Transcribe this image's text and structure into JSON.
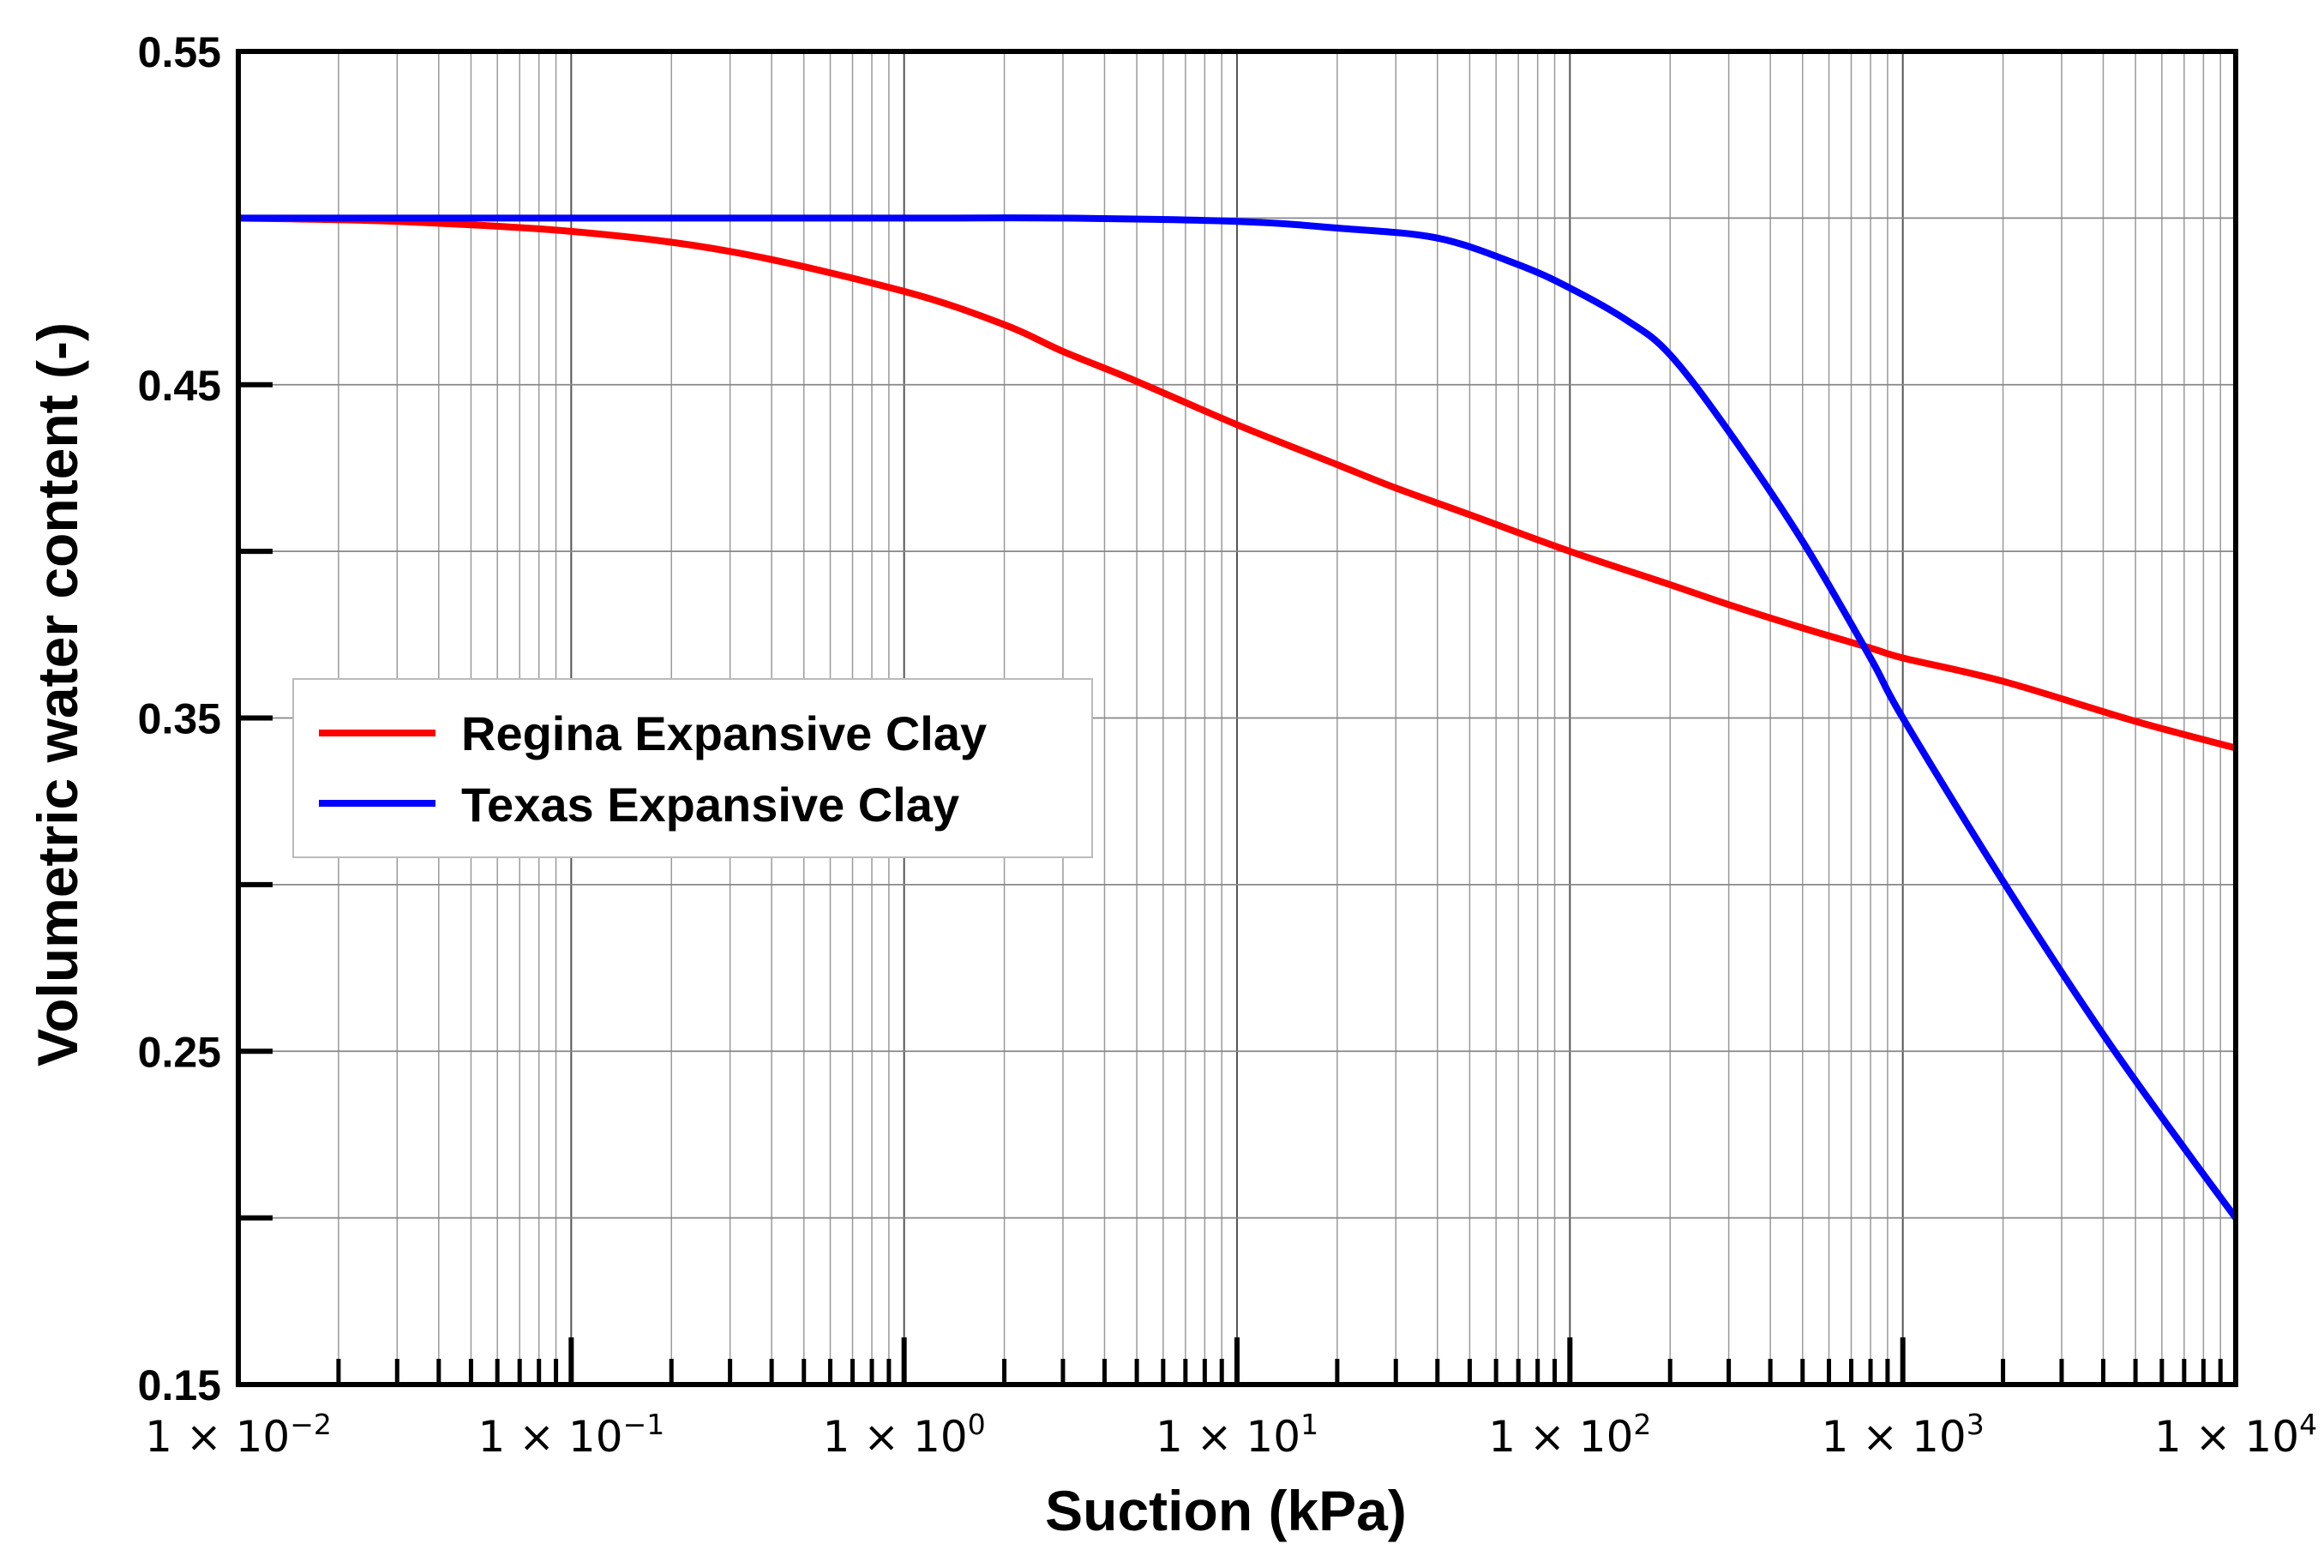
{
  "chart_data": {
    "type": "line",
    "title": "",
    "xlabel": "Suction (kPa)",
    "ylabel": "Volumetric water content (-)",
    "xscale": "log",
    "xlim": [
      0.01,
      10000
    ],
    "ylim": [
      0.15,
      0.55
    ],
    "yticks": [
      0.15,
      0.25,
      0.35,
      0.45,
      0.55
    ],
    "ytick_labels": [
      "0.15",
      "0.25",
      "0.35",
      "0.45",
      "0.55"
    ],
    "yminor": [
      0.2,
      0.3,
      0.4,
      0.5
    ],
    "xtick_labels": [
      {
        "value": 0.01,
        "base": "1 × 10",
        "exp": "−2"
      },
      {
        "value": 0.1,
        "base": "1 × 10",
        "exp": "−1"
      },
      {
        "value": 1,
        "base": "1 × 10",
        "exp": "0"
      },
      {
        "value": 10,
        "base": "1 × 10",
        "exp": "1"
      },
      {
        "value": 100,
        "base": "1 × 10",
        "exp": "2"
      },
      {
        "value": 1000,
        "base": "1 × 10",
        "exp": "3"
      },
      {
        "value": 10000,
        "base": "1 × 10",
        "exp": "4"
      }
    ],
    "grid": true,
    "legend_position": "middle-left",
    "series": [
      {
        "name": "Regina Expansive Clay",
        "color": "#ff0000",
        "x": [
          0.01,
          0.03,
          0.1,
          0.3,
          1,
          2,
          3,
          5,
          10,
          20,
          30,
          50,
          100,
          200,
          300,
          500,
          800,
          1000,
          2000,
          5000,
          10000
        ],
        "y": [
          0.5,
          0.499,
          0.496,
          0.49,
          0.478,
          0.468,
          0.46,
          0.451,
          0.438,
          0.426,
          0.419,
          0.411,
          0.4,
          0.39,
          0.384,
          0.377,
          0.371,
          0.368,
          0.361,
          0.349,
          0.341
        ]
      },
      {
        "name": "Texas Expansive Clay",
        "color": "#0000ff",
        "x": [
          0.01,
          0.1,
          1,
          3,
          10,
          20,
          40,
          70,
          100,
          150,
          200,
          300,
          500,
          800,
          1000,
          2000,
          4000,
          7000,
          10000
        ],
        "y": [
          0.5,
          0.5,
          0.5,
          0.5,
          0.499,
          0.497,
          0.494,
          0.486,
          0.479,
          0.469,
          0.459,
          0.436,
          0.403,
          0.368,
          0.35,
          0.301,
          0.255,
          0.221,
          0.2
        ]
      }
    ]
  }
}
